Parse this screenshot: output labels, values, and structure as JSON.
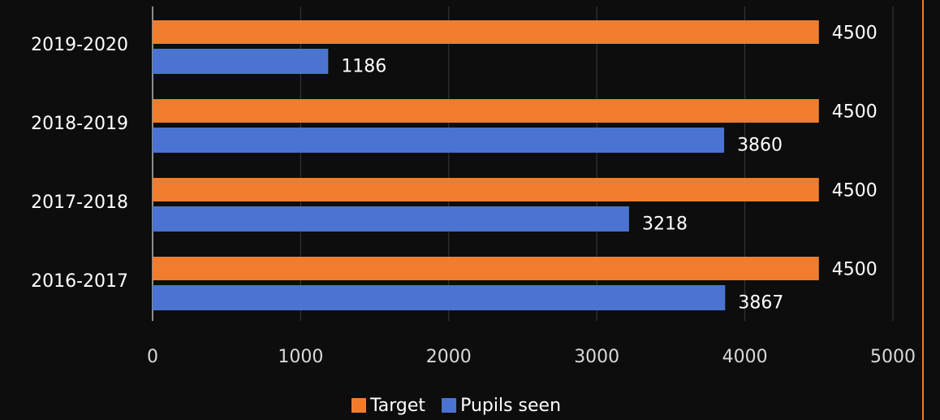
{
  "chart_data": {
    "type": "bar",
    "orientation": "horizontal",
    "categories": [
      "2019-2020",
      "2018-2019",
      "2017-2018",
      "2016-2017"
    ],
    "series": [
      {
        "name": "Target",
        "color": "#f07d2e",
        "values": [
          4500,
          4500,
          4500,
          4500
        ]
      },
      {
        "name": "Pupils seen",
        "color": "#4a74cf",
        "values": [
          1186,
          3860,
          3218,
          3867
        ]
      }
    ],
    "xlim": [
      0,
      5000
    ],
    "xticks": [
      0,
      1000,
      2000,
      3000,
      4000,
      5000
    ],
    "grid": true
  }
}
